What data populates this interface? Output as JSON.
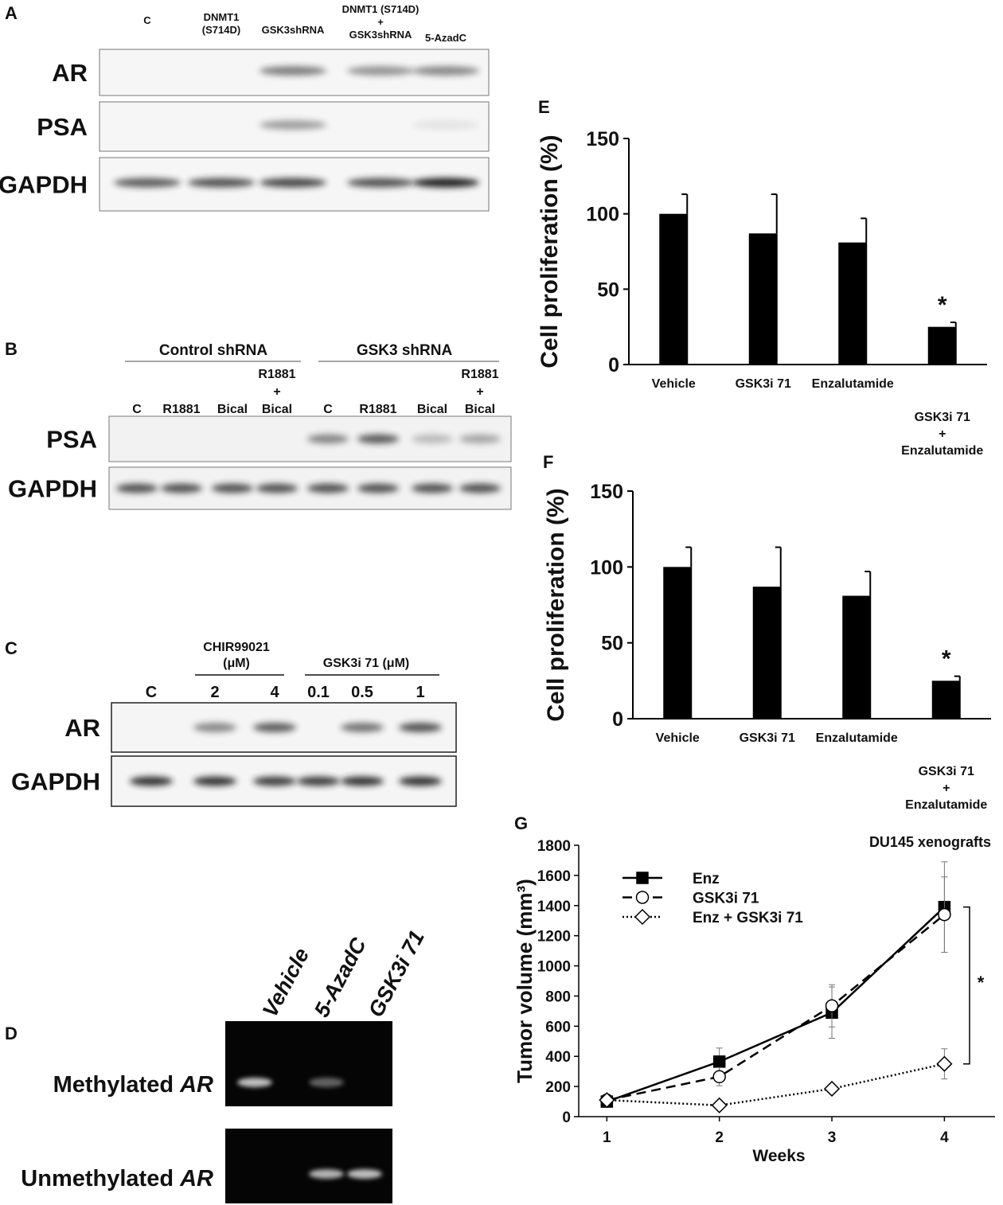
{
  "panels": [
    {
      "letter": "A",
      "lanes": [
        "C",
        "DNMT1\n(S714D)",
        "GSK3shRNA",
        "DNMT1 (S714D)\n+\nGSK3shRNA",
        "5-AzadC"
      ],
      "rows": [
        "AR",
        "PSA",
        "GAPDH"
      ]
    },
    {
      "letter": "B",
      "groups": [
        "Control shRNA",
        "GSK3 shRNA"
      ],
      "lanes": [
        "C",
        "R1881",
        "Bical",
        "R1881\n+\nBical",
        "C",
        "R1881",
        "Bical",
        "R1881\n+\nBical"
      ],
      "rows": [
        "PSA",
        "GAPDH"
      ]
    },
    {
      "letter": "C",
      "groups": [
        "CHIR99021\n(μM)",
        "GSK3i  71 (μM)"
      ],
      "lanes": [
        "C",
        "2",
        "4",
        "0.1",
        "0.5",
        "1"
      ],
      "rows": [
        "AR",
        "GAPDH"
      ]
    },
    {
      "letter": "D",
      "lanes": [
        "Vehicle",
        "5-AzadC",
        "GSK3i 71"
      ],
      "rows": [
        [
          "Methylated ",
          "AR"
        ],
        [
          "Unmethylated ",
          "AR"
        ]
      ]
    }
  ],
  "chart_data": [
    {
      "type": "bar",
      "letter": "E",
      "y_label": "Cell proliferation (%)",
      "categories": [
        "Vehicle",
        "GSK3i 71",
        "Enzalutamide",
        "GSK3i 71\n+\nEnzalutamide"
      ],
      "values": [
        100,
        87,
        81,
        25
      ],
      "errors": [
        13,
        26,
        16,
        3
      ],
      "color": "#000000",
      "ylim": [
        0,
        150
      ],
      "yticks": [
        0,
        50,
        100,
        150
      ],
      "annotation": "*"
    },
    {
      "type": "bar",
      "letter": "F",
      "y_label": "Cell proliferation (%)",
      "categories": [
        "Vehicle",
        "GSK3i 71",
        "Enzalutamide",
        "GSK3i 71\n+\nEnzalutamide"
      ],
      "values": [
        100,
        87,
        81,
        25
      ],
      "errors": [
        13,
        26,
        16,
        3
      ],
      "color": "#000000",
      "ylim": [
        0,
        150
      ],
      "yticks": [
        0,
        50,
        100,
        150
      ],
      "annotation": "*"
    },
    {
      "type": "line",
      "letter": "G",
      "title": "DU145 xenografts",
      "y_label": "Tumor volume (mm³)",
      "x_label": "Weeks",
      "x": [
        1,
        2,
        3,
        4
      ],
      "xlim": [
        0.75,
        4.45
      ],
      "xticks": [
        1,
        2,
        3,
        4
      ],
      "ylim": [
        0,
        1800
      ],
      "yticks": [
        0,
        200,
        400,
        600,
        800,
        1000,
        1200,
        1400,
        1600,
        1800
      ],
      "annotation": "*",
      "series": [
        {
          "name": "Enz",
          "color": "#000000",
          "dash": "solid",
          "marker": "square",
          "marker_fill": "#000000",
          "values": [
            100,
            365,
            690,
            1390
          ],
          "errors": [
            15,
            90,
            170,
            300
          ]
        },
        {
          "name": "GSK3i 71",
          "color": "#000000",
          "dash": "dashed",
          "marker": "circle",
          "marker_fill": "#ffffff",
          "values": [
            110,
            265,
            735,
            1340
          ],
          "errors": [
            15,
            60,
            140,
            250
          ]
        },
        {
          "name": "Enz + GSK3i 71",
          "color": "#000000",
          "dash": "dotted",
          "marker": "diamond",
          "marker_fill": "#ffffff",
          "values": [
            110,
            75,
            185,
            350
          ],
          "errors": [
            10,
            10,
            20,
            100
          ]
        }
      ]
    }
  ]
}
